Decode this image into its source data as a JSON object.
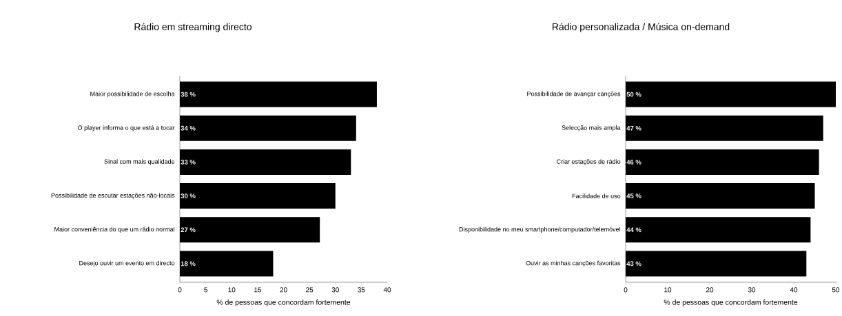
{
  "chart_data": [
    {
      "type": "bar",
      "orientation": "horizontal",
      "title": "Rádio em streaming directo",
      "xlabel": "% de pessoas que concordam fortemente",
      "categories": [
        "Maior possibilidade de escolha",
        "O player informa o que está a tocar",
        "Sinal com mais qualidade",
        "Possibilidade de escutar estações não-locais",
        "Maior conveniência do que um rádio normal",
        "Desejo ouvir um evento em directo"
      ],
      "values": [
        38,
        34,
        33,
        30,
        27,
        18
      ],
      "value_labels": [
        "38 %",
        "34 %",
        "33 %",
        "30 %",
        "27 %",
        "18 %"
      ],
      "color": "#000000",
      "xlim": [
        0,
        40
      ],
      "xticks": [
        0,
        5,
        10,
        15,
        20,
        25,
        30,
        35,
        40
      ],
      "grid": false
    },
    {
      "type": "bar",
      "orientation": "horizontal",
      "title": "Rádio personalizada / Música on-demand",
      "xlabel": "% de pessoas que concordam fortemente",
      "categories": [
        "Possibilidade de avançar canções",
        "Selecção mais ampla",
        "Criar estações de rádio",
        "Facilidade de uso",
        "Disponibilidade no meu smartphone/computador/telemóvel",
        "Ouvir as minhas canções favoritas"
      ],
      "values": [
        50,
        47,
        46,
        45,
        44,
        43
      ],
      "value_labels": [
        "50 %",
        "47 %",
        "46 %",
        "45 %",
        "44 %",
        "43 %"
      ],
      "color": "#000000",
      "xlim": [
        0,
        50
      ],
      "xticks": [
        0,
        10,
        20,
        30,
        40,
        50
      ],
      "grid": false
    }
  ]
}
